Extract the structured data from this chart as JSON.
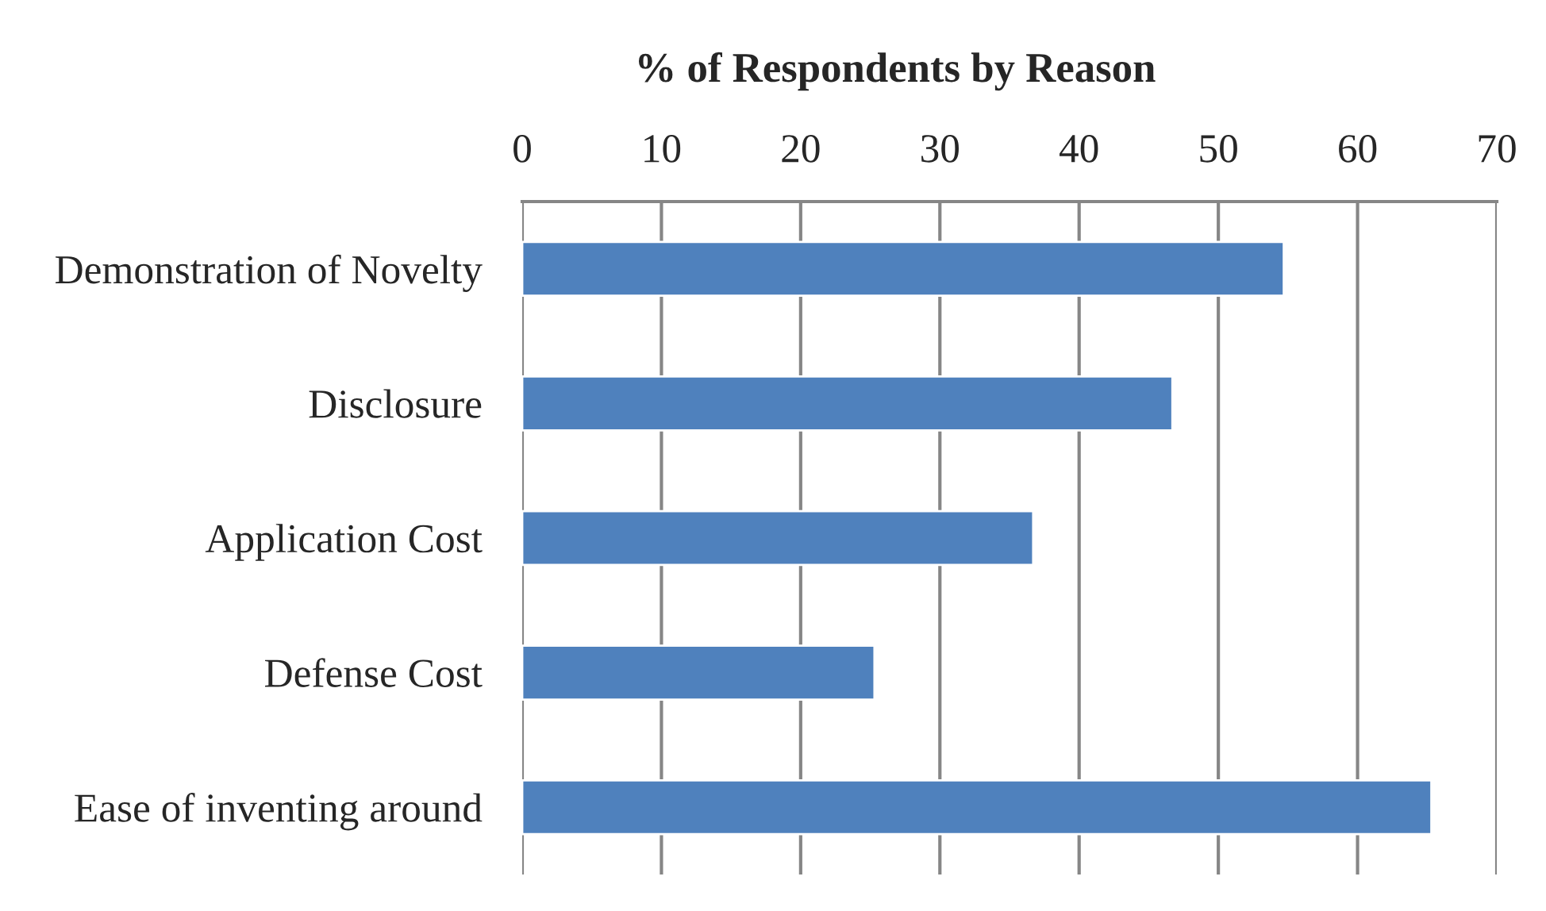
{
  "chart_data": {
    "type": "bar",
    "orientation": "horizontal",
    "title": "% of Respondents by Reason",
    "categories": [
      "Demonstration of Novelty",
      "Disclosure",
      "Application Cost",
      "Defense Cost",
      "Ease of inventing around"
    ],
    "values": [
      54.7,
      46.7,
      36.7,
      25.3,
      65.3
    ],
    "color": "#4f81bd",
    "xlim": [
      0,
      70
    ],
    "xticks": [
      0,
      10,
      20,
      30,
      40,
      50,
      60,
      70
    ],
    "grid": "x"
  }
}
